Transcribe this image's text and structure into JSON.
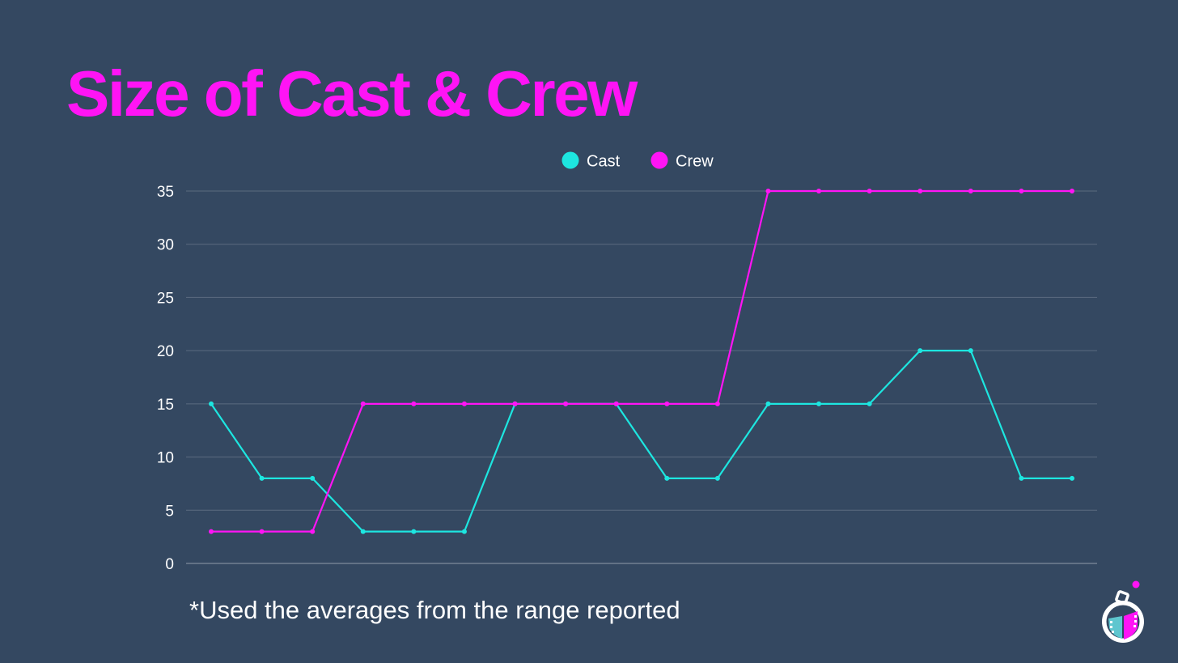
{
  "title": "Size of Cast & Crew",
  "title_color": "#ff14f5",
  "footnote": "*Used the averages from the range reported",
  "logo_icon": "flask-film-icon",
  "chart_data": {
    "type": "line",
    "title": "",
    "xlabel": "",
    "ylabel": "",
    "x": [
      1,
      2,
      3,
      4,
      5,
      6,
      7,
      8,
      9,
      10,
      11,
      12,
      13,
      14,
      15,
      16,
      17,
      18
    ],
    "ylim": [
      0,
      35
    ],
    "yticks": [
      0,
      5,
      10,
      15,
      20,
      25,
      30,
      35
    ],
    "grid": true,
    "legend_position": "top-center",
    "series": [
      {
        "name": "Cast",
        "color": "#1de6e0",
        "values": [
          15,
          8,
          8,
          3,
          3,
          3,
          15,
          15,
          15,
          8,
          8,
          15,
          15,
          15,
          20,
          20,
          8,
          8
        ]
      },
      {
        "name": "Crew",
        "color": "#ff14f5",
        "values": [
          3,
          3,
          3,
          15,
          15,
          15,
          15,
          15,
          15,
          15,
          15,
          35,
          35,
          35,
          35,
          35,
          35,
          35
        ]
      }
    ]
  }
}
